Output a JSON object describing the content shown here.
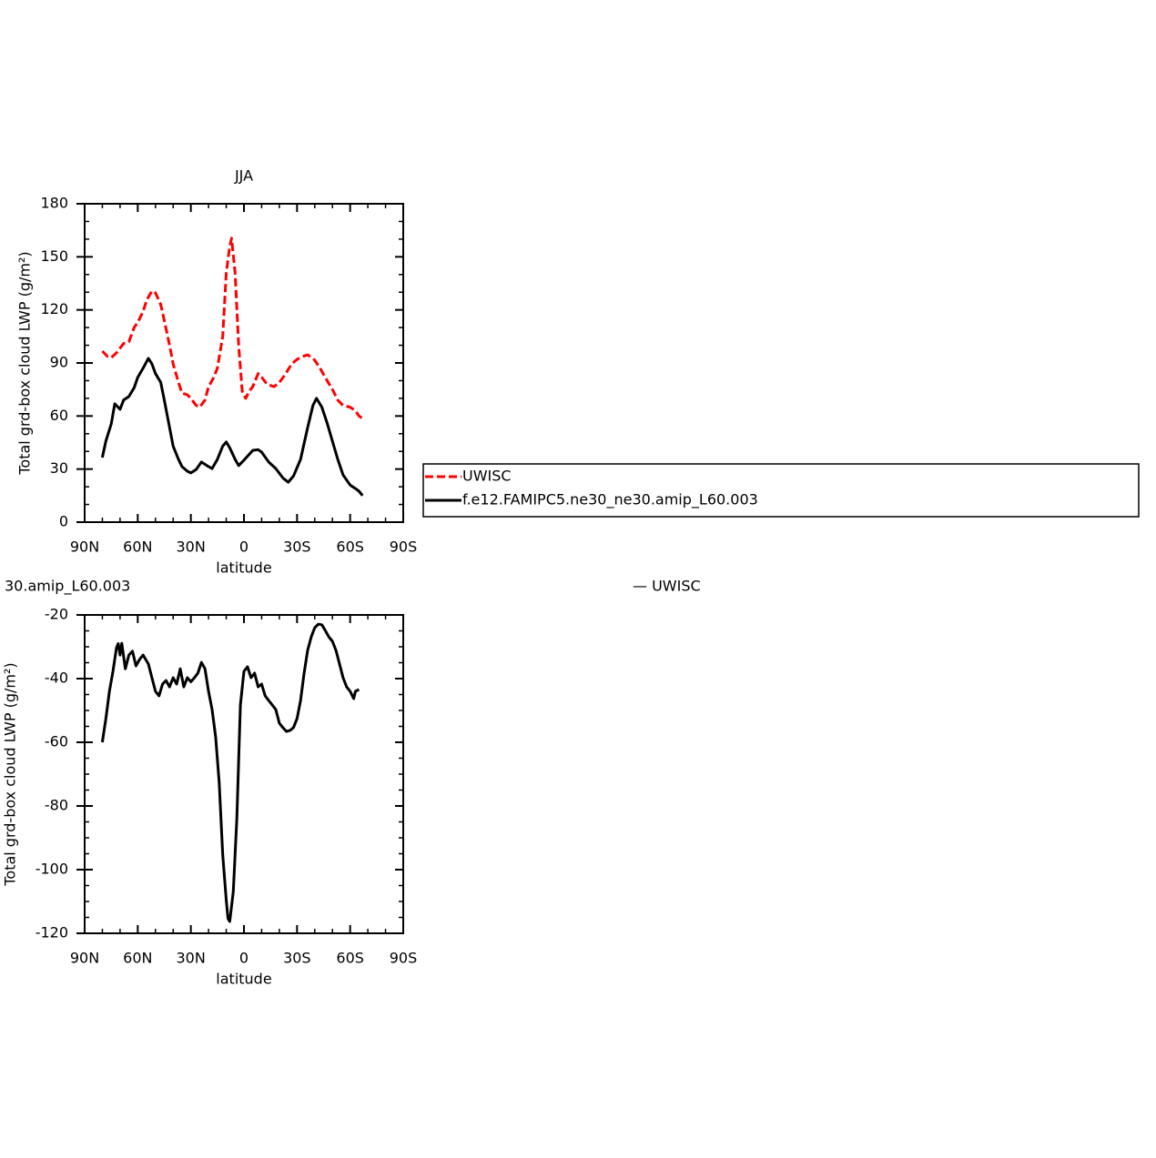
{
  "chart_data": [
    {
      "type": "line",
      "title": "JJA",
      "xlabel": "latitude",
      "ylabel": "Total grd-box cloud LWP (g/m²)",
      "xlim": [
        90,
        -90
      ],
      "xticks": [
        {
          "value": 90,
          "label": "90N"
        },
        {
          "value": 60,
          "label": "60N"
        },
        {
          "value": 30,
          "label": "30N"
        },
        0,
        {
          "value": -30,
          "label": "30S"
        },
        {
          "value": -60,
          "label": "60S"
        },
        {
          "value": -90,
          "label": "90S"
        }
      ],
      "ylim": [
        0,
        180
      ],
      "yticks": [
        0,
        30,
        60,
        90,
        120,
        150,
        180
      ],
      "legend": "right",
      "series": [
        {
          "name": "UWISC",
          "color": "#ff0000",
          "dash": true,
          "x": [
            80,
            77,
            75,
            72,
            68,
            65,
            62,
            60,
            57,
            55,
            52,
            50,
            47,
            45,
            42,
            40,
            37,
            35,
            32,
            30,
            27,
            25,
            22,
            20,
            17,
            15,
            12,
            10,
            8,
            7,
            5,
            3,
            1,
            -1,
            -3,
            -5,
            -8,
            -10,
            -13,
            -17,
            -20,
            -23,
            -27,
            -30,
            -33,
            -36,
            -40,
            -43,
            -47,
            -50,
            -53,
            -56,
            -60,
            -63,
            -65,
            -68
          ],
          "values": [
            96.7,
            93.6,
            93,
            95.7,
            101,
            102,
            110,
            113,
            119,
            125.5,
            130.7,
            129.6,
            123,
            114,
            100,
            89.5,
            79,
            73,
            72,
            70,
            66,
            65,
            69,
            76.6,
            81.8,
            87,
            105,
            141,
            156,
            160.5,
            141,
            100,
            74,
            70,
            74,
            76.6,
            84,
            82,
            78,
            76.6,
            79,
            83,
            89.5,
            92,
            93.6,
            94.6,
            91.6,
            87,
            80,
            75,
            69,
            66,
            65,
            63,
            60,
            58
          ]
        },
        {
          "name": "f.e12.FAMIPC5.ne30_ne30.amip_L60.003",
          "color": "#000000",
          "dash": false,
          "x": [
            80,
            78,
            75,
            73,
            70,
            68,
            65,
            62,
            60,
            57,
            54,
            52,
            50,
            47,
            45,
            42,
            40,
            37,
            35,
            32,
            30,
            27,
            24,
            21,
            18,
            15,
            12,
            10,
            8,
            5,
            3,
            0,
            -5,
            -8,
            -10,
            -14,
            -18,
            -22,
            -25,
            -28,
            -32,
            -36,
            -39,
            -41,
            -44,
            -47,
            -50,
            -53,
            -56,
            -60,
            -63,
            -65,
            -67
          ],
          "values": [
            36.5,
            45.8,
            55.5,
            66.9,
            63.8,
            69,
            71,
            76,
            81.8,
            87,
            92.6,
            89.5,
            84,
            79,
            69,
            53.5,
            43,
            35.5,
            31.4,
            28.8,
            27.8,
            29.8,
            34,
            32,
            30.3,
            35.5,
            43,
            45.3,
            42,
            35.5,
            32,
            35,
            40.6,
            41,
            39.6,
            34,
            30.3,
            25,
            22.6,
            26,
            35.5,
            53.5,
            66,
            70,
            65,
            56,
            45.8,
            35.5,
            26.7,
            21,
            19,
            17.5,
            15
          ]
        }
      ]
    },
    {
      "type": "line",
      "title": "30.amip_L60.003",
      "annotation": "— UWISC",
      "xlabel": "latitude",
      "ylabel": "Total grd-box cloud LWP (g/m²)",
      "xlim": [
        90,
        -90
      ],
      "xticks": [
        {
          "value": 90,
          "label": "90N"
        },
        {
          "value": 60,
          "label": "60N"
        },
        {
          "value": 30,
          "label": "30N"
        },
        0,
        {
          "value": -30,
          "label": "30S"
        },
        {
          "value": -60,
          "label": "60S"
        },
        {
          "value": -90,
          "label": "90S"
        }
      ],
      "ylim": [
        -120,
        -20
      ],
      "yticks": [
        -120,
        -100,
        -80,
        -60,
        -40,
        -20
      ],
      "series": [
        {
          "color": "#000000",
          "dash": false,
          "x": [
            80,
            78,
            76,
            74,
            72,
            71,
            70,
            69,
            67,
            65,
            63,
            61,
            59,
            57,
            54,
            52,
            50,
            48,
            46,
            44,
            42,
            40,
            38,
            36,
            34,
            32,
            30,
            28,
            26,
            24,
            22,
            20,
            18,
            16,
            14,
            12,
            10,
            9,
            8,
            6,
            4,
            2,
            0,
            -2,
            -4,
            -6,
            -8,
            -10,
            -12,
            -14,
            -16,
            -18,
            -20,
            -22,
            -24,
            -26,
            -28,
            -30,
            -32,
            -34,
            -36,
            -38,
            -40,
            -42,
            -44,
            -46,
            -48,
            -50,
            -52,
            -54,
            -56,
            -58,
            -60,
            -62,
            -63,
            -65
          ],
          "values": [
            -60,
            -52.6,
            -44,
            -37.7,
            -30.3,
            -29,
            -32.6,
            -28.9,
            -36.9,
            -32.6,
            -31.4,
            -36,
            -34,
            -32.6,
            -35.4,
            -39.7,
            -44,
            -45.4,
            -41.7,
            -40.6,
            -42.6,
            -39.7,
            -41.7,
            -36.9,
            -42.6,
            -39.7,
            -41,
            -39.7,
            -38.3,
            -34.9,
            -36.9,
            -44,
            -49.7,
            -58.3,
            -72.6,
            -95.4,
            -109.7,
            -115.4,
            -116.3,
            -106.9,
            -84,
            -48.3,
            -37.7,
            -36.3,
            -39.7,
            -38.3,
            -42.6,
            -41.7,
            -45.4,
            -46.9,
            -48.3,
            -49.7,
            -54,
            -55.4,
            -56.6,
            -56.3,
            -55.4,
            -52.6,
            -46.9,
            -38.3,
            -31.1,
            -26.9,
            -24,
            -22.9,
            -23.1,
            -24.9,
            -26.9,
            -28.3,
            -31.1,
            -35.4,
            -39.7,
            -42.6,
            -44,
            -46.3,
            -44,
            -43.4
          ]
        }
      ]
    }
  ]
}
